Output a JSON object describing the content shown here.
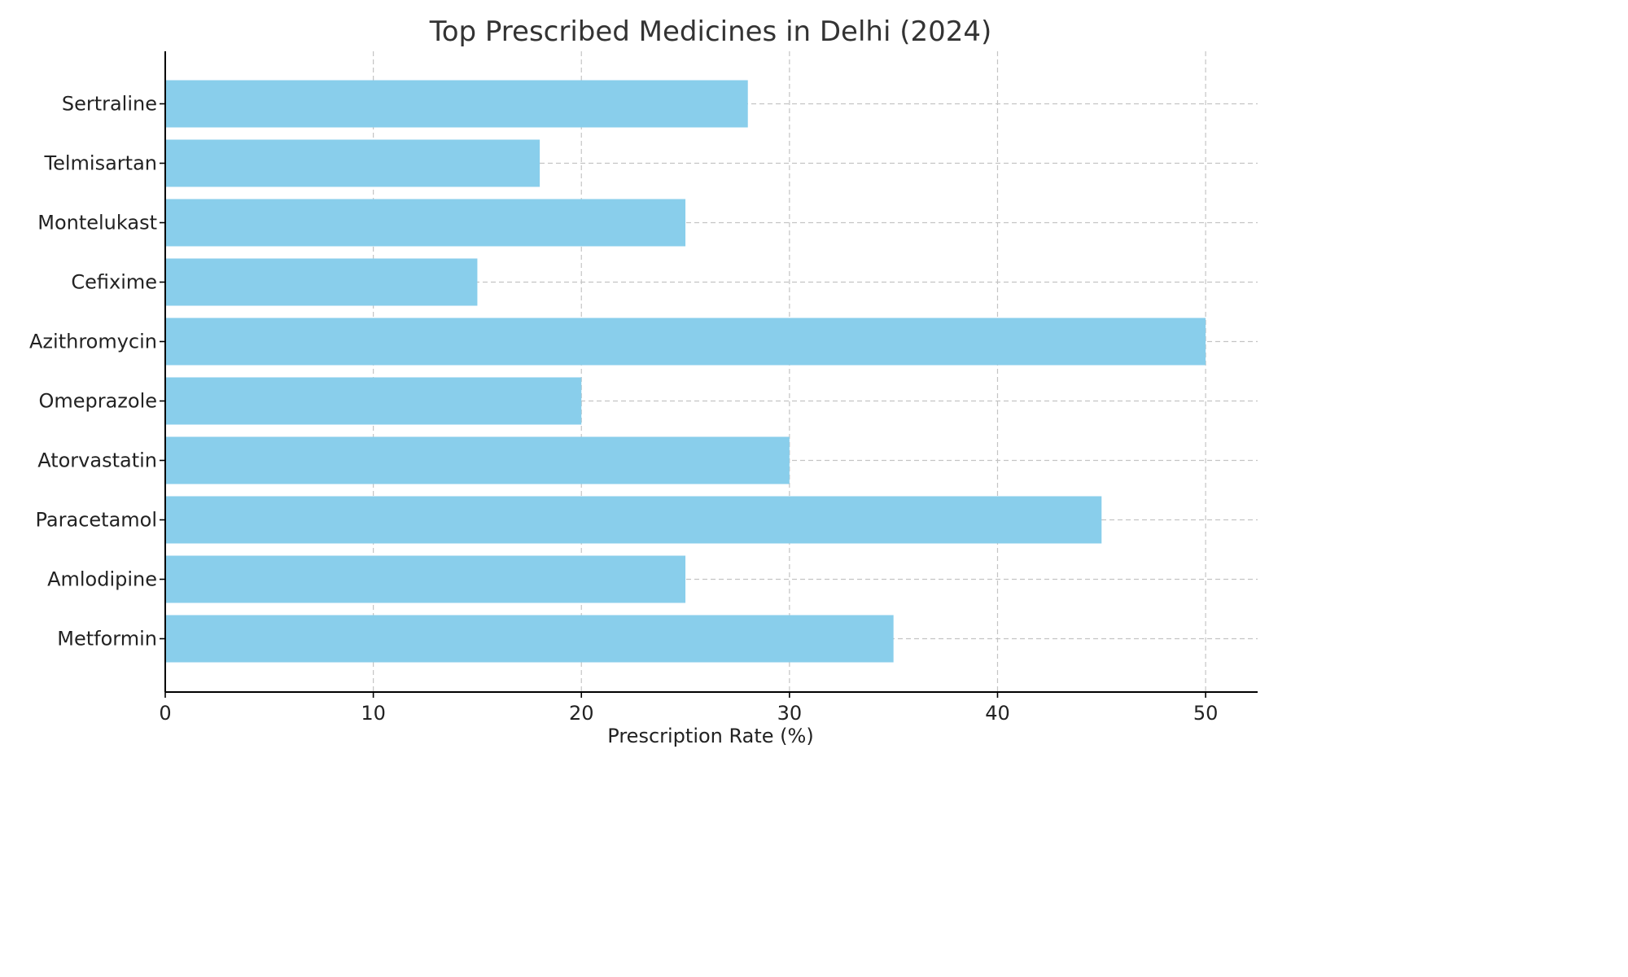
{
  "chart_data": {
    "type": "bar",
    "orientation": "horizontal",
    "title": "Top Prescribed Medicines in Delhi (2024)",
    "xlabel": "Prescription Rate (%)",
    "ylabel": "",
    "categories": [
      "Metformin",
      "Amlodipine",
      "Paracetamol",
      "Atorvastatin",
      "Omeprazole",
      "Azithromycin",
      "Cefixime",
      "Montelukast",
      "Telmisartan",
      "Sertraline"
    ],
    "values": [
      35,
      25,
      45,
      30,
      20,
      50,
      15,
      25,
      18,
      28
    ],
    "xlim": [
      0,
      52.5
    ],
    "xticks": [
      0,
      10,
      20,
      30,
      40,
      50
    ],
    "grid": true,
    "legend": "none",
    "bar_color": "#89CEEB"
  }
}
